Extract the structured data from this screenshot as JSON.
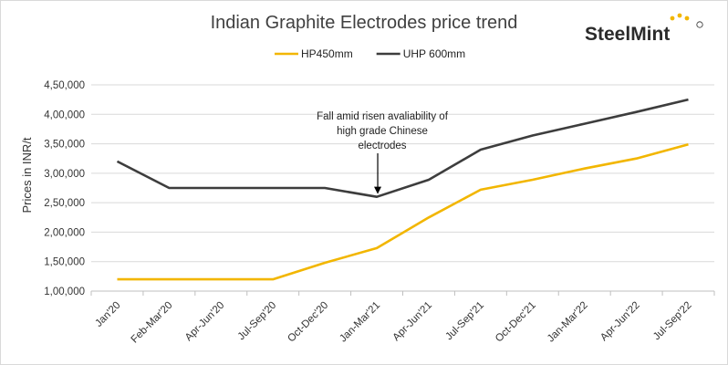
{
  "logo": {
    "text": "SteelMint",
    "accent_color": "#f2b600"
  },
  "chart_data": {
    "type": "line",
    "title": "Indian Graphite Electrodes price trend",
    "xlabel": "",
    "ylabel": "Prices in INR/t",
    "categories": [
      "Jan'20",
      "Feb-Mar'20",
      "Apr-Jun'20",
      "Jul-Sep'20",
      "Oct-Dec'20",
      "Jan-Mar'21",
      "Apr-Jun'21",
      "Jul-Sep'21",
      "Oct-Dec'21",
      "Jan-Mar'22",
      "Apr-Jun'22",
      "Jul-Sep'22"
    ],
    "series": [
      {
        "name": "HP450mm",
        "color": "#f2b600",
        "values": [
          120000,
          120000,
          120000,
          120000,
          148000,
          173000,
          225000,
          272000,
          289000,
          308000,
          325000,
          349000
        ]
      },
      {
        "name": "UHP 600mm",
        "color": "#3d3d3d",
        "values": [
          320000,
          275000,
          275000,
          275000,
          275000,
          260000,
          289000,
          340000,
          364000,
          384000,
          404000,
          425000
        ]
      }
    ],
    "ylim": [
      100000,
      450000
    ],
    "yticks": [
      100000,
      150000,
      200000,
      250000,
      300000,
      350000,
      400000,
      450000
    ],
    "ytick_labels": [
      "1,00,000",
      "1,50,000",
      "2,00,000",
      "2,50,000",
      "3,00,000",
      "3,50,000",
      "4,00,000",
      "4,50,000"
    ],
    "grid": true,
    "legend_position": "top-center",
    "annotation": {
      "lines": [
        "Fall amid  risen avaliability of",
        "high grade Chinese",
        "electrodes"
      ],
      "category": "Jan-Mar'21",
      "series": "UHP 600mm"
    }
  }
}
